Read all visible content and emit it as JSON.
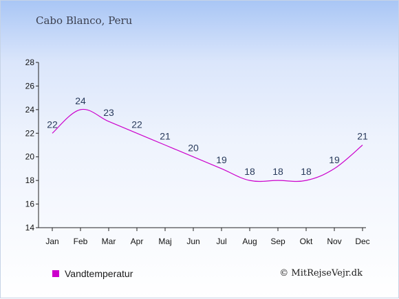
{
  "header": {
    "title": "Cabo Blanco, Peru"
  },
  "chart_data": {
    "type": "line",
    "categories": [
      "Jan",
      "Feb",
      "Mar",
      "Apr",
      "Maj",
      "Jun",
      "Jul",
      "Aug",
      "Sep",
      "Okt",
      "Nov",
      "Dec"
    ],
    "series": [
      {
        "name": "Vandtemperatur",
        "values": [
          22,
          24,
          23,
          22,
          21,
          20,
          19,
          18,
          18,
          18,
          19,
          21
        ],
        "color": "#cc00cc"
      }
    ],
    "ylim": [
      14,
      28
    ],
    "yticks": [
      14,
      16,
      18,
      20,
      22,
      24,
      26,
      28
    ],
    "grid": false,
    "legend": "bottom-left"
  },
  "footer": {
    "copyright": "© MitRejseVejr.dk"
  }
}
